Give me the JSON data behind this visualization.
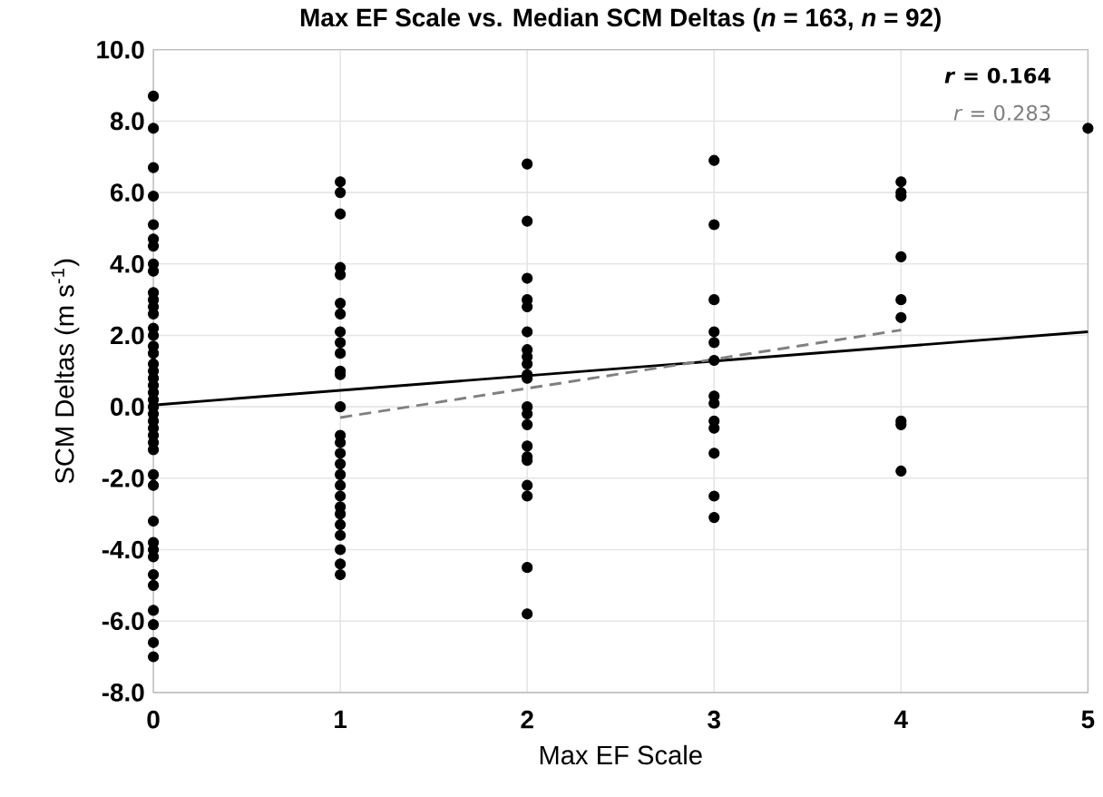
{
  "chart_data": {
    "type": "scatter",
    "title": "Max EF Scale vs. Median SCM Deltas (*n* = 163, *n* = 92)",
    "xlabel": "Max EF Scale",
    "ylabel": "SCM Deltas (m s$^{-1}$)",
    "xlim": [
      0,
      5
    ],
    "ylim": [
      -8,
      10
    ],
    "xticks": [
      0,
      1,
      2,
      3,
      4,
      5
    ],
    "yticks": [
      {
        "value": -8,
        "label": "-8.0"
      },
      {
        "value": -6,
        "label": "-6.0"
      },
      {
        "value": -4,
        "label": "-4.0"
      },
      {
        "value": -2,
        "label": "-2.0"
      },
      {
        "value": 0,
        "label": "0.0"
      },
      {
        "value": 2,
        "label": "2.0"
      },
      {
        "value": 4,
        "label": "4.0"
      },
      {
        "value": 6,
        "label": "6.0"
      },
      {
        "value": 8,
        "label": "8.0"
      },
      {
        "value": 10,
        "label": "10.0"
      }
    ],
    "grid": true,
    "annotations": [
      "*r* = 0.164",
      "*r* = 0.283"
    ],
    "series": [
      {
        "marker": "circle",
        "color": "#000000",
        "x": [
          0,
          0,
          0,
          0,
          0,
          0,
          0,
          0,
          0,
          0,
          0,
          0,
          0,
          0,
          0,
          0,
          0,
          0,
          0,
          0,
          0,
          0,
          0,
          0,
          0,
          0,
          0,
          0,
          0,
          0,
          0,
          0,
          0,
          0,
          0,
          0,
          0,
          0,
          0,
          0,
          0,
          0,
          1,
          1,
          1,
          1,
          1,
          1,
          1,
          1,
          1,
          1,
          1,
          1,
          1,
          1,
          1,
          1,
          1,
          1,
          1,
          1,
          1,
          1,
          1,
          1,
          1,
          1,
          1,
          2,
          2,
          2,
          2,
          2,
          2,
          2,
          2,
          2,
          2,
          2,
          2,
          2,
          2,
          2,
          2,
          2,
          2,
          2,
          2,
          2,
          3,
          3,
          3,
          3,
          3,
          3,
          3,
          3,
          3,
          3,
          3,
          3,
          3,
          4,
          4,
          4,
          4,
          4,
          4,
          4,
          4,
          4,
          5
        ],
        "values": [
          8.7,
          7.8,
          6.7,
          5.9,
          5.1,
          4.7,
          4.5,
          4.0,
          3.8,
          3.2,
          3.0,
          2.8,
          2.6,
          2.2,
          2.0,
          1.7,
          1.5,
          1.2,
          1.0,
          0.8,
          0.6,
          0.4,
          0.2,
          0.0,
          -0.2,
          -0.4,
          -0.6,
          -0.8,
          -1.0,
          -1.2,
          -1.9,
          -2.2,
          -3.2,
          -3.8,
          -4.0,
          -4.2,
          -4.7,
          -5.0,
          -5.7,
          -6.1,
          -6.6,
          -7.0,
          6.3,
          6.0,
          5.4,
          3.9,
          3.7,
          2.9,
          2.6,
          2.1,
          1.8,
          1.5,
          1.0,
          0.9,
          0.0,
          -0.8,
          -1.0,
          -1.3,
          -1.6,
          -1.9,
          -2.2,
          -2.5,
          -2.8,
          -3.0,
          -3.3,
          -3.6,
          -4.0,
          -4.4,
          -4.7,
          6.8,
          5.2,
          3.6,
          3.0,
          2.8,
          2.1,
          1.6,
          1.4,
          1.2,
          0.9,
          0.8,
          0.0,
          -0.2,
          -0.5,
          -1.1,
          -1.4,
          -1.5,
          -2.2,
          -2.5,
          -4.5,
          -5.8,
          6.9,
          5.1,
          3.0,
          2.1,
          1.8,
          1.3,
          0.3,
          0.1,
          -0.4,
          -0.6,
          -1.3,
          -2.5,
          -3.1,
          6.3,
          6.0,
          5.9,
          4.2,
          3.0,
          2.5,
          -0.4,
          -0.5,
          -1.8,
          7.8
        ]
      },
      {
        "type": "line",
        "color": "#000000",
        "line_style": "solid",
        "marker": "none",
        "x": [
          0,
          5
        ],
        "values": [
          0.05,
          2.1
        ]
      },
      {
        "type": "line",
        "color": "#808080",
        "line_style": "dashed",
        "marker": "none",
        "x": [
          1,
          4
        ],
        "values": [
          -0.3,
          2.15
        ]
      }
    ]
  }
}
